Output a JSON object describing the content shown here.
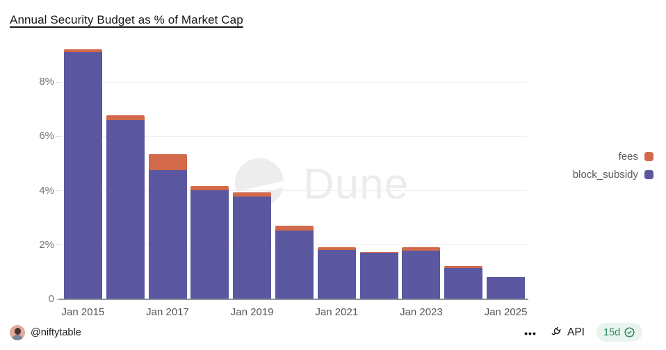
{
  "header": {
    "title": "Annual Security Budget as % of Market Cap"
  },
  "watermark": {
    "text": "Dune"
  },
  "colors": {
    "fees": "#d2694a",
    "block_subsidy": "#5b57a1",
    "gridline": "#efefef",
    "axis": "#8f939b",
    "badge_bg": "#e8f4ed",
    "badge_text": "#2e8763"
  },
  "legend": {
    "position": "right",
    "items": [
      {
        "label": "fees",
        "color": "#d2694a"
      },
      {
        "label": "block_subsidy",
        "color": "#5b57a1"
      }
    ]
  },
  "chart_data": {
    "type": "bar",
    "stacked": true,
    "title": "Annual Security Budget as % of Market Cap",
    "categories": [
      "Jan 2015",
      "Jan 2016",
      "Jan 2017",
      "Jan 2018",
      "Jan 2019",
      "Jan 2020",
      "Jan 2021",
      "Jan 2022",
      "Jan 2023",
      "Jan 2024",
      "Jan 2025"
    ],
    "series": [
      {
        "name": "block_subsidy",
        "color": "#5b57a1",
        "values": [
          9.1,
          6.6,
          4.75,
          4.02,
          3.78,
          2.54,
          1.81,
          1.71,
          1.78,
          1.14,
          0.82
        ]
      },
      {
        "name": "fees",
        "color": "#d2694a",
        "values": [
          0.1,
          0.17,
          0.6,
          0.16,
          0.15,
          0.16,
          0.12,
          0.04,
          0.14,
          0.09,
          0.01
        ]
      }
    ],
    "xlabel": "",
    "ylabel": "",
    "ylim": [
      0,
      9.36
    ],
    "grid": true,
    "legend_position": "right",
    "yticks": [
      {
        "value": 0,
        "label": "0"
      },
      {
        "value": 2,
        "label": "2%"
      },
      {
        "value": 4,
        "label": "4%"
      },
      {
        "value": 6,
        "label": "6%"
      },
      {
        "value": 8,
        "label": "8%"
      }
    ],
    "xticks_shown": [
      "Jan 2015",
      "Jan 2017",
      "Jan 2019",
      "Jan 2021",
      "Jan 2023",
      "Jan 2025"
    ]
  },
  "footer": {
    "author_handle": "@niftytable",
    "more_icon": "•••",
    "api_label": "API",
    "refresh_badge": "15d"
  }
}
